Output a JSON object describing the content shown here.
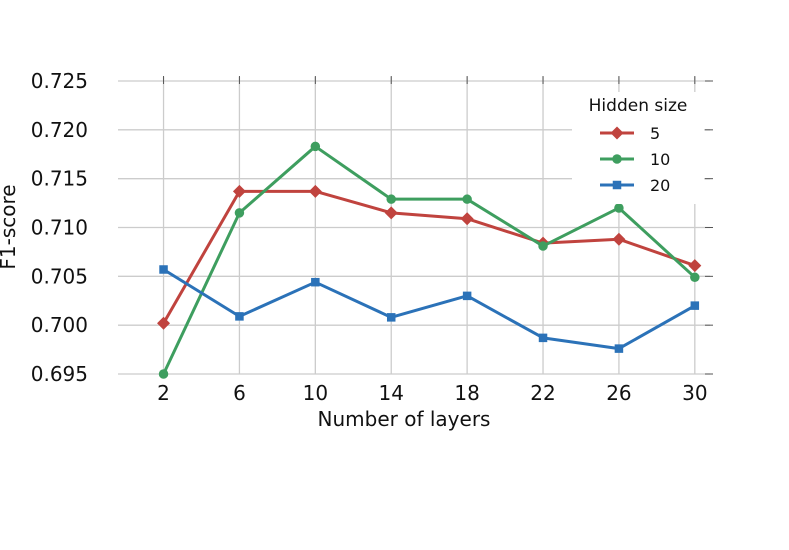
{
  "chart_data": {
    "type": "line",
    "xlabel": "Number of layers",
    "ylabel": "F1-score",
    "x": [
      2,
      6,
      10,
      14,
      18,
      22,
      26,
      30
    ],
    "xticks": [
      "2",
      "6",
      "10",
      "14",
      "18",
      "22",
      "26",
      "30"
    ],
    "ylim": [
      0.695,
      0.725
    ],
    "yticks": [
      "0.695",
      "0.700",
      "0.705",
      "0.710",
      "0.715",
      "0.720",
      "0.725"
    ],
    "grid": true,
    "legend": {
      "title": "Hidden size",
      "position": "top-right"
    },
    "series": [
      {
        "name": "5",
        "color": "#c0433e",
        "marker": "diamond",
        "values": [
          0.7002,
          0.7137,
          0.7137,
          0.7115,
          0.7109,
          0.7084,
          0.7088,
          0.7061
        ]
      },
      {
        "name": "10",
        "color": "#3e9e5f",
        "marker": "circle",
        "values": [
          0.695,
          0.7115,
          0.7183,
          0.7129,
          0.7129,
          0.7081,
          0.712,
          0.7049
        ]
      },
      {
        "name": "20",
        "color": "#2b72b8",
        "marker": "square",
        "values": [
          0.7057,
          0.7009,
          0.7044,
          0.7008,
          0.703,
          0.6987,
          0.6976,
          0.702
        ]
      }
    ]
  }
}
